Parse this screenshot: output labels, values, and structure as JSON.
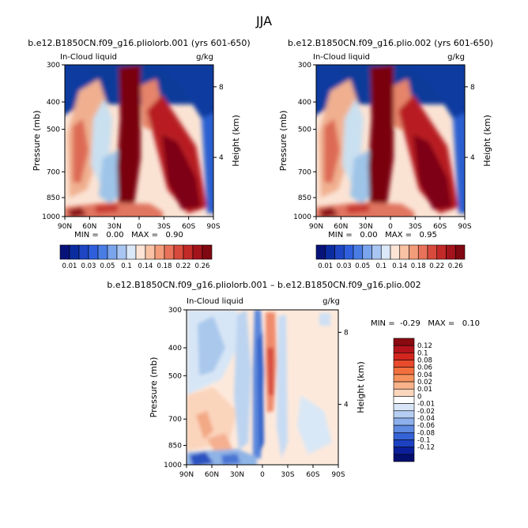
{
  "figure_title": "JJA",
  "chart_data": [
    {
      "type": "heatmap",
      "title": "b.e12.B1850CN.f09_g16.pliolorb.001 (yrs 601-650)",
      "field": "In-Cloud liquid",
      "units": "g/kg",
      "xlabel": "",
      "ylabel": "Pressure (mb)",
      "y2label": "Height (km)",
      "x_ticks": [
        "90N",
        "60N",
        "30N",
        "0",
        "30S",
        "60S",
        "90S"
      ],
      "y_ticks": [
        "300",
        "400",
        "500",
        "700",
        "850",
        "1000"
      ],
      "y2_ticks": [
        "8",
        "4"
      ],
      "stats_text": "MIN =   0.00   MAX =   0.90",
      "min": 0.0,
      "max": 0.9,
      "colorbar_labels": [
        "0.01",
        "0.03",
        "0.05",
        "0.1",
        "0.14",
        "0.18",
        "0.22",
        "0.26"
      ],
      "colorbar_levels": [
        0.01,
        0.02,
        0.03,
        0.04,
        0.05,
        0.06,
        0.08,
        0.1,
        0.12,
        0.14,
        0.16,
        0.18,
        0.2,
        0.22,
        0.24,
        0.26
      ]
    },
    {
      "type": "heatmap",
      "title": "b.e12.B1850CN.f09_g16.plio.002 (yrs 601-650)",
      "field": "In-Cloud liquid",
      "units": "g/kg",
      "xlabel": "",
      "ylabel": "Pressure (mb)",
      "y2label": "Height (km)",
      "x_ticks": [
        "90N",
        "60N",
        "30N",
        "0",
        "30S",
        "60S",
        "90S"
      ],
      "y_ticks": [
        "300",
        "400",
        "500",
        "700",
        "850",
        "1000"
      ],
      "y2_ticks": [
        "8",
        "4"
      ],
      "stats_text": "MIN =   0.00   MAX =   0.95",
      "min": 0.0,
      "max": 0.95,
      "colorbar_labels": [
        "0.01",
        "0.03",
        "0.05",
        "0.1",
        "0.14",
        "0.18",
        "0.22",
        "0.26"
      ],
      "colorbar_levels": [
        0.01,
        0.02,
        0.03,
        0.04,
        0.05,
        0.06,
        0.08,
        0.1,
        0.12,
        0.14,
        0.16,
        0.18,
        0.2,
        0.22,
        0.24,
        0.26
      ]
    },
    {
      "type": "heatmap",
      "title": "b.e12.B1850CN.f09_g16.pliolorb.001 – b.e12.B1850CN.f09_g16.plio.002",
      "field": "In-Cloud liquid",
      "units": "g/kg",
      "xlabel": "",
      "ylabel": "Pressure (mb)",
      "y2label": "Height (km)",
      "x_ticks": [
        "90N",
        "60N",
        "30N",
        "0",
        "30S",
        "60S",
        "90S"
      ],
      "y_ticks": [
        "300",
        "400",
        "500",
        "700",
        "850",
        "1000"
      ],
      "y2_ticks": [
        "8",
        "4"
      ],
      "stats_text": "MIN =  -0.29   MAX =   0.10",
      "min": -0.29,
      "max": 0.1,
      "colorbar_labels": [
        "0.12",
        "0.1",
        "0.08",
        "0.06",
        "0.04",
        "0.02",
        "0.01",
        "0",
        "-0.01",
        "-0.02",
        "-0.04",
        "-0.06",
        "-0.08",
        "-0.1",
        "-0.12"
      ]
    }
  ]
}
